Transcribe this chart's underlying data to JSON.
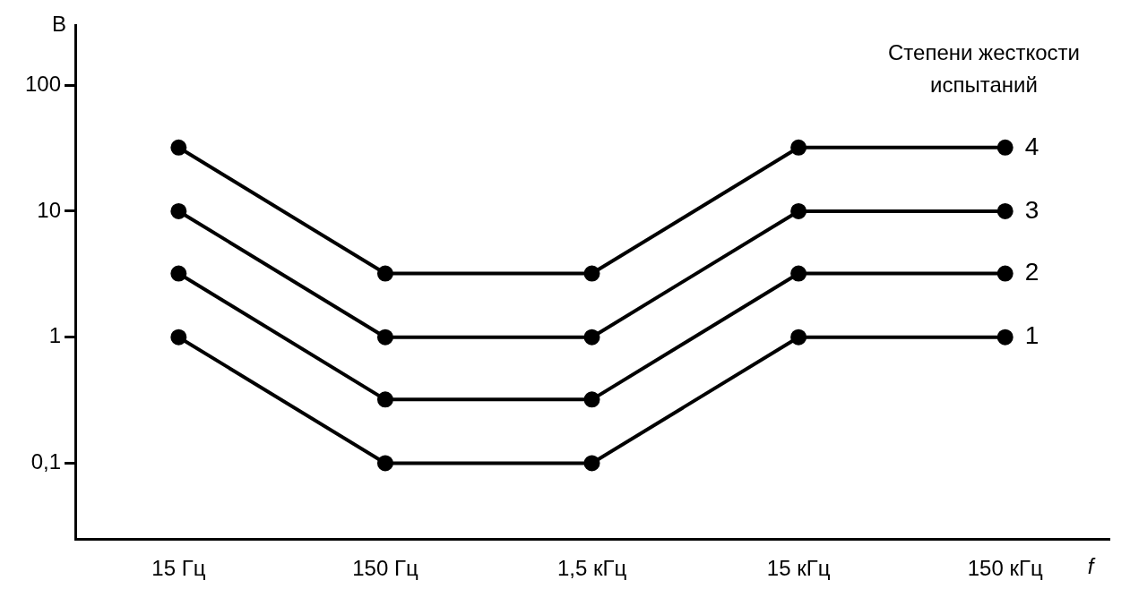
{
  "chart_data": {
    "type": "line",
    "xlabel": "f",
    "ylabel": "В",
    "legend_title": "Степени жесткости испытаний",
    "categories": [
      "15 Гц",
      "150 Гц",
      "1,5 кГц",
      "15 кГц",
      "150 кГц"
    ],
    "series": [
      {
        "name": "4",
        "color": "#000000",
        "values": [
          32,
          3.2,
          3.2,
          32,
          32
        ]
      },
      {
        "name": "3",
        "color": "#000000",
        "values": [
          10,
          1,
          1,
          10,
          10
        ]
      },
      {
        "name": "2",
        "color": "#000000",
        "values": [
          3.2,
          0.32,
          0.32,
          3.2,
          3.2
        ]
      },
      {
        "name": "1",
        "color": "#000000",
        "values": [
          1,
          0.1,
          0.1,
          1,
          1
        ]
      }
    ],
    "log": "y",
    "ylim": [
      0.025,
      300
    ],
    "yticks": [
      {
        "value": 0.1,
        "label": "0,1"
      },
      1,
      10,
      100
    ],
    "grid": false,
    "legend": false,
    "marker": "circle",
    "line_style": "solid"
  }
}
